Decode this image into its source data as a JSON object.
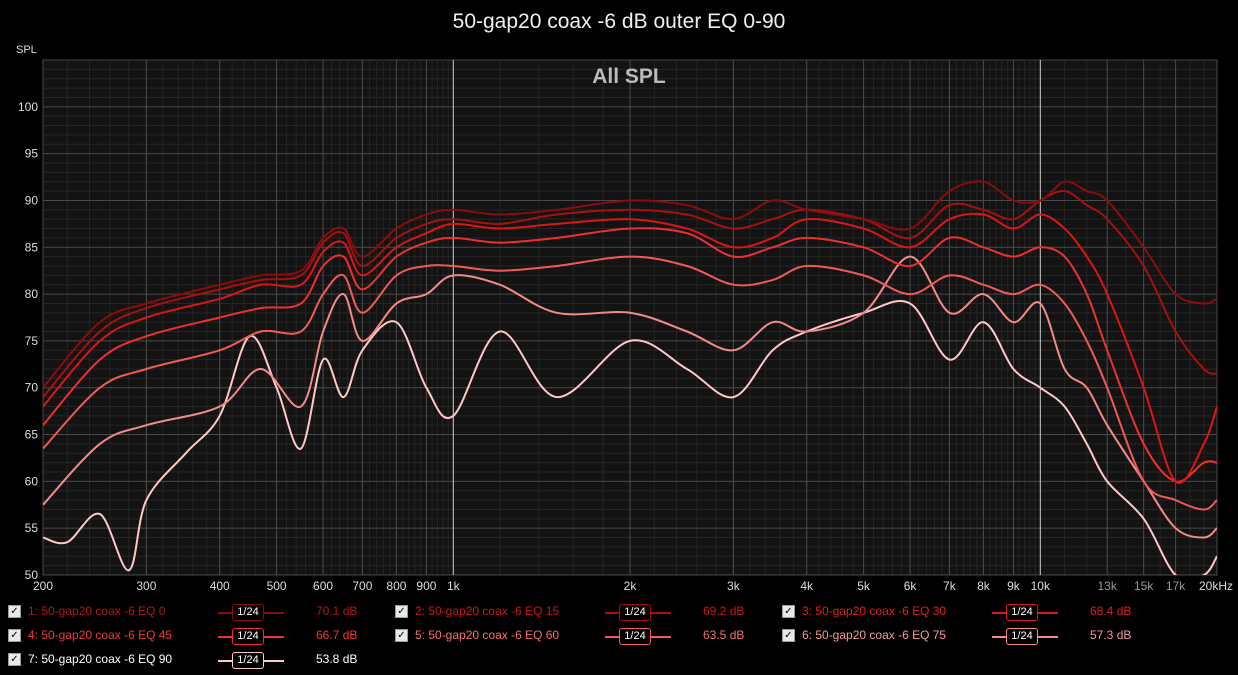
{
  "title": "50-gap20 coax -6 dB outer EQ 0-90",
  "chart_data": {
    "type": "line",
    "title": "50-gap20 coax -6 dB outer EQ 0-90",
    "subtitle": "All SPL",
    "ylabel": "SPL",
    "xlabel": "",
    "x_scale": "log",
    "xlim": [
      200,
      20000
    ],
    "ylim": [
      50,
      105
    ],
    "grid": true,
    "x_ticks": [
      {
        "v": 200,
        "label": "200"
      },
      {
        "v": 300,
        "label": "300"
      },
      {
        "v": 400,
        "label": "400"
      },
      {
        "v": 500,
        "label": "500"
      },
      {
        "v": 600,
        "label": "600"
      },
      {
        "v": 700,
        "label": "700"
      },
      {
        "v": 800,
        "label": "800"
      },
      {
        "v": 900,
        "label": "900"
      },
      {
        "v": 1000,
        "label": "1k"
      },
      {
        "v": 2000,
        "label": "2k"
      },
      {
        "v": 3000,
        "label": "3k"
      },
      {
        "v": 4000,
        "label": "4k"
      },
      {
        "v": 5000,
        "label": "5k"
      },
      {
        "v": 6000,
        "label": "6k"
      },
      {
        "v": 7000,
        "label": "7k"
      },
      {
        "v": 8000,
        "label": "8k"
      },
      {
        "v": 9000,
        "label": "9k"
      },
      {
        "v": 10000,
        "label": "10k"
      },
      {
        "v": 13000,
        "label": "13k"
      },
      {
        "v": 15000,
        "label": "15k"
      },
      {
        "v": 17000,
        "label": "17k"
      },
      {
        "v": 20000,
        "label": "20kHz"
      }
    ],
    "y_ticks": [
      50,
      55,
      60,
      65,
      70,
      75,
      80,
      85,
      90,
      95,
      100
    ],
    "series": [
      {
        "name": "1: 50-gap20 coax -6 EQ 0",
        "color": "#8b0c0c",
        "value_label": "70.1 dB",
        "x": [
          200,
          250,
          300,
          400,
          470,
          550,
          600,
          650,
          700,
          800,
          900,
          1000,
          1200,
          1500,
          2000,
          2500,
          3000,
          3500,
          4000,
          5000,
          6000,
          7000,
          8000,
          9000,
          10000,
          11000,
          12000,
          13000,
          15000,
          17000,
          19000,
          20000
        ],
        "y": [
          70,
          77,
          79,
          81,
          82,
          82.5,
          86,
          87,
          84,
          87,
          88.5,
          89,
          88.5,
          89,
          90,
          89.5,
          88,
          90,
          89,
          88,
          87,
          91,
          92,
          90,
          90,
          92,
          91,
          90,
          85,
          80,
          79,
          79.5
        ]
      },
      {
        "name": "2: 50-gap20 coax -6 EQ 15",
        "color": "#a81010",
        "value_label": "69.2 dB",
        "x": [
          200,
          250,
          300,
          400,
          470,
          550,
          600,
          650,
          700,
          800,
          900,
          1000,
          1200,
          1500,
          2000,
          2500,
          3000,
          3500,
          4000,
          5000,
          6000,
          7000,
          8000,
          9000,
          10000,
          11000,
          12000,
          13000,
          15000,
          17000,
          19000,
          20000
        ],
        "y": [
          69,
          76,
          78.5,
          80.5,
          81.5,
          82,
          85.5,
          86.5,
          83,
          86,
          87.5,
          88,
          87.5,
          88.5,
          89,
          88.5,
          87,
          88,
          89,
          88,
          86,
          89.5,
          89,
          88,
          90,
          91,
          89.5,
          88,
          83,
          76,
          72,
          71.5
        ]
      },
      {
        "name": "3: 50-gap20 coax -6 EQ 30",
        "color": "#dd1515",
        "value_label": "68.4 dB",
        "x": [
          200,
          250,
          300,
          400,
          470,
          550,
          600,
          650,
          700,
          800,
          900,
          1000,
          1200,
          1500,
          2000,
          2500,
          3000,
          3500,
          4000,
          5000,
          6000,
          7000,
          8000,
          9000,
          10000,
          11000,
          12000,
          13000,
          15000,
          17000,
          19000,
          20000
        ],
        "y": [
          68,
          75,
          77.5,
          79.5,
          81,
          81,
          84.5,
          85.5,
          82,
          85,
          86.5,
          87.5,
          87,
          87.5,
          88,
          87,
          85,
          86,
          88,
          87,
          85,
          88,
          88.5,
          87,
          88.5,
          87,
          84,
          80,
          70,
          60,
          64,
          68
        ]
      },
      {
        "name": "4: 50-gap20 coax -6 EQ 45",
        "color": "#ee3030",
        "value_label": "66.7 dB",
        "x": [
          200,
          250,
          300,
          400,
          470,
          550,
          600,
          650,
          700,
          800,
          900,
          1000,
          1200,
          1500,
          2000,
          2500,
          3000,
          3500,
          4000,
          5000,
          6000,
          7000,
          8000,
          9000,
          10000,
          11000,
          12000,
          13000,
          15000,
          17000,
          19000,
          20000
        ],
        "y": [
          66,
          73,
          75.5,
          77.5,
          78.5,
          79,
          83,
          84,
          80.5,
          84,
          85.5,
          86,
          85.5,
          86,
          87,
          86.5,
          84,
          85,
          86,
          85,
          83,
          86,
          85,
          84,
          85,
          84,
          80,
          74,
          64,
          60,
          62,
          62
        ]
      },
      {
        "name": "5: 50-gap20 coax -6 EQ 60",
        "color": "#f25a5a",
        "value_label": "63.5 dB",
        "x": [
          200,
          250,
          300,
          400,
          470,
          550,
          600,
          650,
          700,
          800,
          900,
          1000,
          1200,
          1500,
          2000,
          2500,
          3000,
          3500,
          4000,
          5000,
          6000,
          7000,
          8000,
          9000,
          10000,
          11000,
          12000,
          13000,
          15000,
          17000,
          19000,
          20000
        ],
        "y": [
          63.5,
          70,
          72,
          74,
          76,
          76,
          80,
          82,
          78,
          82,
          83,
          83,
          82.5,
          83,
          84,
          83,
          81,
          81.5,
          83,
          82,
          80,
          82,
          81,
          80,
          81,
          79,
          75,
          70,
          60,
          58,
          57,
          58
        ]
      },
      {
        "name": "6: 50-gap20 coax -6 EQ 75",
        "color": "#f48a8a",
        "value_label": "57.3 dB",
        "x": [
          200,
          250,
          300,
          400,
          470,
          550,
          600,
          650,
          700,
          800,
          900,
          1000,
          1200,
          1500,
          2000,
          2500,
          3000,
          3500,
          4000,
          5000,
          6000,
          7000,
          8000,
          9000,
          10000,
          11000,
          12000,
          13000,
          15000,
          17000,
          19000,
          20000
        ],
        "y": [
          57.5,
          64,
          66,
          68,
          72,
          68,
          76,
          80,
          75,
          79,
          80,
          82,
          81,
          78,
          78,
          76,
          74,
          77,
          76,
          78,
          84,
          78,
          80,
          77,
          79,
          72,
          70,
          66,
          60,
          55,
          54,
          55
        ]
      },
      {
        "name": "7: 50-gap20 coax -6 EQ 90",
        "color": "#ffc8c8",
        "value_label": "53.8 dB",
        "x": [
          200,
          220,
          250,
          280,
          300,
          350,
          400,
          450,
          500,
          550,
          600,
          650,
          700,
          800,
          900,
          1000,
          1200,
          1500,
          2000,
          2500,
          3000,
          3500,
          4000,
          5000,
          6000,
          7000,
          8000,
          9000,
          10000,
          11000,
          12000,
          13000,
          15000,
          17000,
          19000,
          20000
        ],
        "y": [
          54,
          53.5,
          56.5,
          50.5,
          58,
          63,
          67,
          75.5,
          70,
          63.5,
          73,
          69,
          74,
          77,
          70,
          67,
          76,
          69,
          75,
          72,
          69,
          74,
          76,
          78,
          79,
          73,
          77,
          72,
          70,
          68,
          64,
          60,
          56,
          50,
          50,
          52
        ]
      }
    ]
  },
  "legend": [
    {
      "checkbox": "✓",
      "name": "1: 50-gap20 coax -6 EQ 0",
      "smoothing": "1/24",
      "value": "70.1 dB",
      "name_color": "#b01818",
      "value_color": "#b01818",
      "line_color": "#8b0c0c"
    },
    {
      "checkbox": "✓",
      "name": "2: 50-gap20 coax -6 EQ 15",
      "smoothing": "1/24",
      "value": "69.2 dB",
      "name_color": "#c81818",
      "value_color": "#c81818",
      "line_color": "#a81010"
    },
    {
      "checkbox": "✓",
      "name": "3: 50-gap20 coax -6 EQ 30",
      "smoothing": "1/24",
      "value": "68.4 dB",
      "name_color": "#e02020",
      "value_color": "#e02020",
      "line_color": "#dd1515"
    },
    {
      "checkbox": "✓",
      "name": "4: 50-gap20 coax -6 EQ 45",
      "smoothing": "1/24",
      "value": "66.7 dB",
      "name_color": "#ee3a3a",
      "value_color": "#ee3a3a",
      "line_color": "#ee3030"
    },
    {
      "checkbox": "✓",
      "name": "5: 50-gap20 coax -6 EQ 60",
      "smoothing": "1/24",
      "value": "63.5 dB",
      "name_color": "#f27070",
      "value_color": "#f27070",
      "line_color": "#f25a5a"
    },
    {
      "checkbox": "✓",
      "name": "6: 50-gap20 coax -6 EQ 75",
      "smoothing": "1/24",
      "value": "57.3 dB",
      "name_color": "#f49a9a",
      "value_color": "#f49a9a",
      "line_color": "#f48a8a"
    },
    {
      "checkbox": "✓",
      "name": "7: 50-gap20 coax -6 EQ 90",
      "smoothing": "1/24",
      "value": "53.8 dB",
      "name_color": "#ffffff",
      "value_color": "#ffffff",
      "line_color": "#ffc8c8"
    }
  ]
}
